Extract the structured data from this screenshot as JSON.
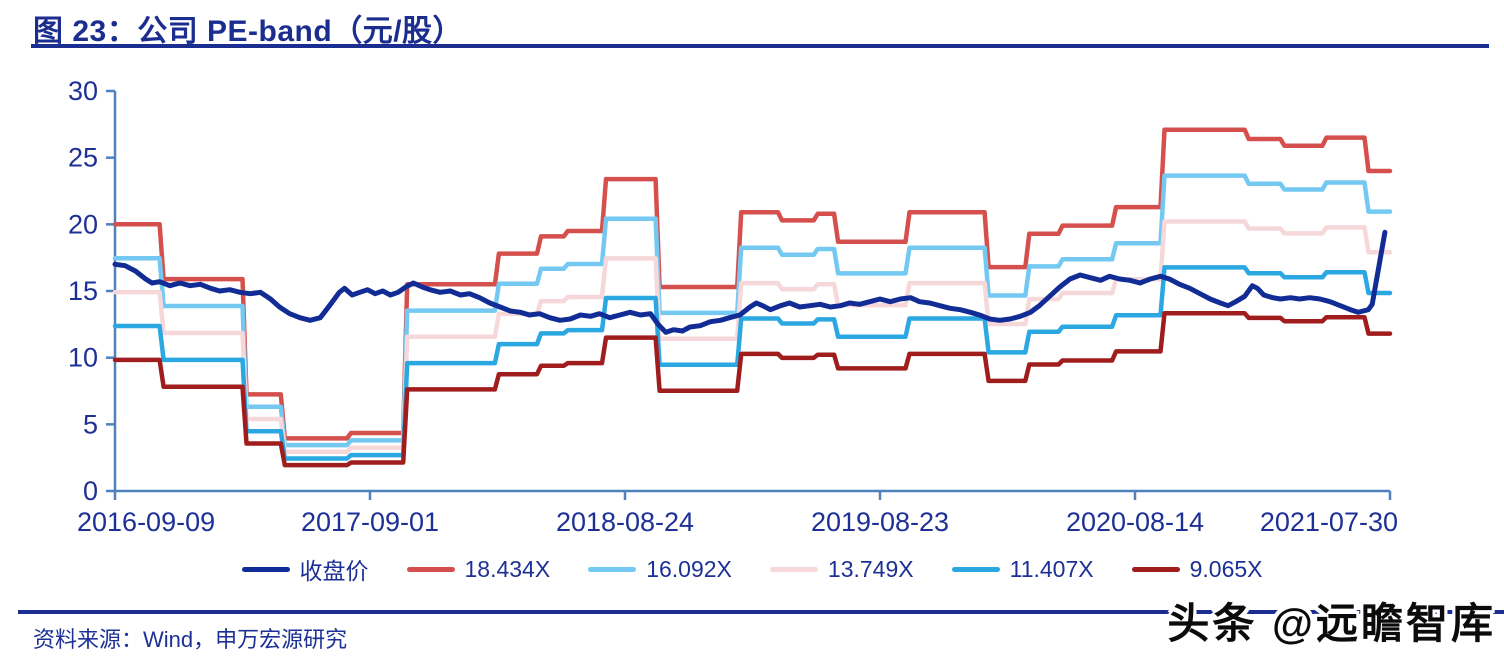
{
  "header": {
    "title": "图 23：公司 PE-band（元/股）"
  },
  "footer": {
    "source": "资料来源：Wind，申万宏源研究",
    "watermark": "头条 @远瞻智库"
  },
  "legend": {
    "items": [
      {
        "label": "收盘价",
        "color": "#122c96"
      },
      {
        "label": "18.434X",
        "color": "#d5504d"
      },
      {
        "label": "16.092X",
        "color": "#73c9f2"
      },
      {
        "label": "13.749X",
        "color": "#f6d8da"
      },
      {
        "label": "11.407X",
        "color": "#2ba7e2"
      },
      {
        "label": "9.065X",
        "color": "#a01d1d"
      }
    ]
  },
  "chart_data": {
    "type": "line",
    "title": "公司 PE-band（元/股）",
    "xlabel": "",
    "ylabel": "",
    "ylim": [
      0,
      30
    ],
    "yticks": [
      0,
      5,
      10,
      15,
      20,
      25,
      30
    ],
    "xtick_labels": [
      "2016-09-09",
      "2017-09-01",
      "2018-08-24",
      "2019-08-23",
      "2020-08-14",
      "2021-07-30"
    ],
    "grid": false,
    "legend_position": "bottom",
    "axis_color": "#4f81bd",
    "close_series": {
      "name": "收盘价",
      "color": "#122c96",
      "points": [
        [
          0.0,
          17.0
        ],
        [
          0.008,
          16.9
        ],
        [
          0.016,
          16.5
        ],
        [
          0.024,
          15.9
        ],
        [
          0.029,
          15.6
        ],
        [
          0.035,
          15.7
        ],
        [
          0.043,
          15.4
        ],
        [
          0.051,
          15.6
        ],
        [
          0.059,
          15.4
        ],
        [
          0.067,
          15.5
        ],
        [
          0.075,
          15.2
        ],
        [
          0.082,
          15.0
        ],
        [
          0.09,
          15.1
        ],
        [
          0.098,
          14.9
        ],
        [
          0.106,
          14.8
        ],
        [
          0.114,
          14.9
        ],
        [
          0.122,
          14.4
        ],
        [
          0.129,
          13.8
        ],
        [
          0.137,
          13.3
        ],
        [
          0.145,
          13.0
        ],
        [
          0.153,
          12.8
        ],
        [
          0.161,
          13.0
        ],
        [
          0.169,
          14.0
        ],
        [
          0.176,
          14.9
        ],
        [
          0.18,
          15.2
        ],
        [
          0.186,
          14.7
        ],
        [
          0.192,
          14.9
        ],
        [
          0.198,
          15.1
        ],
        [
          0.204,
          14.8
        ],
        [
          0.21,
          15.0
        ],
        [
          0.216,
          14.7
        ],
        [
          0.222,
          14.9
        ],
        [
          0.228,
          15.3
        ],
        [
          0.234,
          15.6
        ],
        [
          0.241,
          15.3
        ],
        [
          0.247,
          15.1
        ],
        [
          0.255,
          14.9
        ],
        [
          0.263,
          15.0
        ],
        [
          0.271,
          14.7
        ],
        [
          0.278,
          14.8
        ],
        [
          0.286,
          14.5
        ],
        [
          0.294,
          14.1
        ],
        [
          0.302,
          13.8
        ],
        [
          0.31,
          13.5
        ],
        [
          0.318,
          13.4
        ],
        [
          0.325,
          13.2
        ],
        [
          0.333,
          13.3
        ],
        [
          0.341,
          13.0
        ],
        [
          0.349,
          12.8
        ],
        [
          0.357,
          12.9
        ],
        [
          0.365,
          13.2
        ],
        [
          0.373,
          13.1
        ],
        [
          0.38,
          13.3
        ],
        [
          0.388,
          13.0
        ],
        [
          0.396,
          13.2
        ],
        [
          0.404,
          13.4
        ],
        [
          0.412,
          13.2
        ],
        [
          0.42,
          13.3
        ],
        [
          0.426,
          12.5
        ],
        [
          0.432,
          11.9
        ],
        [
          0.438,
          12.1
        ],
        [
          0.445,
          12.0
        ],
        [
          0.451,
          12.3
        ],
        [
          0.459,
          12.4
        ],
        [
          0.467,
          12.7
        ],
        [
          0.475,
          12.8
        ],
        [
          0.482,
          13.0
        ],
        [
          0.49,
          13.2
        ],
        [
          0.498,
          13.8
        ],
        [
          0.503,
          14.1
        ],
        [
          0.508,
          13.9
        ],
        [
          0.514,
          13.6
        ],
        [
          0.522,
          13.9
        ],
        [
          0.529,
          14.1
        ],
        [
          0.537,
          13.8
        ],
        [
          0.545,
          13.9
        ],
        [
          0.553,
          14.0
        ],
        [
          0.561,
          13.8
        ],
        [
          0.569,
          13.9
        ],
        [
          0.576,
          14.1
        ],
        [
          0.584,
          14.0
        ],
        [
          0.592,
          14.2
        ],
        [
          0.6,
          14.4
        ],
        [
          0.608,
          14.2
        ],
        [
          0.616,
          14.4
        ],
        [
          0.624,
          14.5
        ],
        [
          0.631,
          14.2
        ],
        [
          0.639,
          14.1
        ],
        [
          0.647,
          13.9
        ],
        [
          0.655,
          13.7
        ],
        [
          0.663,
          13.6
        ],
        [
          0.671,
          13.4
        ],
        [
          0.678,
          13.2
        ],
        [
          0.686,
          12.9
        ],
        [
          0.694,
          12.8
        ],
        [
          0.702,
          12.9
        ],
        [
          0.71,
          13.1
        ],
        [
          0.718,
          13.4
        ],
        [
          0.725,
          13.9
        ],
        [
          0.733,
          14.6
        ],
        [
          0.741,
          15.3
        ],
        [
          0.749,
          15.9
        ],
        [
          0.757,
          16.2
        ],
        [
          0.765,
          16.0
        ],
        [
          0.773,
          15.8
        ],
        [
          0.78,
          16.1
        ],
        [
          0.788,
          15.9
        ],
        [
          0.796,
          15.8
        ],
        [
          0.804,
          15.6
        ],
        [
          0.812,
          15.9
        ],
        [
          0.82,
          16.1
        ],
        [
          0.827,
          15.9
        ],
        [
          0.835,
          15.5
        ],
        [
          0.843,
          15.2
        ],
        [
          0.851,
          14.8
        ],
        [
          0.859,
          14.4
        ],
        [
          0.867,
          14.1
        ],
        [
          0.873,
          13.9
        ],
        [
          0.879,
          14.2
        ],
        [
          0.886,
          14.6
        ],
        [
          0.892,
          15.4
        ],
        [
          0.896,
          15.2
        ],
        [
          0.901,
          14.7
        ],
        [
          0.908,
          14.5
        ],
        [
          0.914,
          14.4
        ],
        [
          0.922,
          14.5
        ],
        [
          0.929,
          14.4
        ],
        [
          0.937,
          14.5
        ],
        [
          0.945,
          14.4
        ],
        [
          0.953,
          14.2
        ],
        [
          0.961,
          13.9
        ],
        [
          0.969,
          13.6
        ],
        [
          0.975,
          13.4
        ],
        [
          0.979,
          13.5
        ],
        [
          0.983,
          13.6
        ],
        [
          0.986,
          14.0
        ],
        [
          0.996,
          19.4
        ]
      ]
    },
    "pe_bands": {
      "note": "band value = eps × multiple; step function over time (x = fraction of axis)",
      "multiples": [
        {
          "label": "18.434X",
          "multiple": 18.434,
          "color": "#d5504d"
        },
        {
          "label": "16.092X",
          "multiple": 16.092,
          "color": "#73c9f2"
        },
        {
          "label": "13.749X",
          "multiple": 13.749,
          "color": "#f6d8da"
        },
        {
          "label": "11.407X",
          "multiple": 11.407,
          "color": "#2ba7e2"
        },
        {
          "label": "9.065X",
          "multiple": 9.065,
          "color": "#a01d1d"
        }
      ],
      "eps_steps": [
        {
          "x": 0.0,
          "eps": 1.085
        },
        {
          "x": 0.035,
          "eps": 0.862
        },
        {
          "x": 0.1,
          "eps": 0.393
        },
        {
          "x": 0.13,
          "eps": 0.214
        },
        {
          "x": 0.182,
          "eps": 0.236
        },
        {
          "x": 0.226,
          "eps": 0.841
        },
        {
          "x": 0.298,
          "eps": 0.966
        },
        {
          "x": 0.331,
          "eps": 1.036
        },
        {
          "x": 0.352,
          "eps": 1.058
        },
        {
          "x": 0.382,
          "eps": 1.269
        },
        {
          "x": 0.424,
          "eps": 0.83
        },
        {
          "x": 0.488,
          "eps": 1.134
        },
        {
          "x": 0.52,
          "eps": 1.101
        },
        {
          "x": 0.548,
          "eps": 1.128
        },
        {
          "x": 0.564,
          "eps": 1.014
        },
        {
          "x": 0.62,
          "eps": 1.134
        },
        {
          "x": 0.682,
          "eps": 0.911
        },
        {
          "x": 0.714,
          "eps": 1.047
        },
        {
          "x": 0.74,
          "eps": 1.08
        },
        {
          "x": 0.782,
          "eps": 1.155
        },
        {
          "x": 0.82,
          "eps": 1.47
        },
        {
          "x": 0.886,
          "eps": 1.432
        },
        {
          "x": 0.914,
          "eps": 1.405
        },
        {
          "x": 0.947,
          "eps": 1.438
        },
        {
          "x": 0.98,
          "eps": 1.302
        }
      ]
    }
  }
}
